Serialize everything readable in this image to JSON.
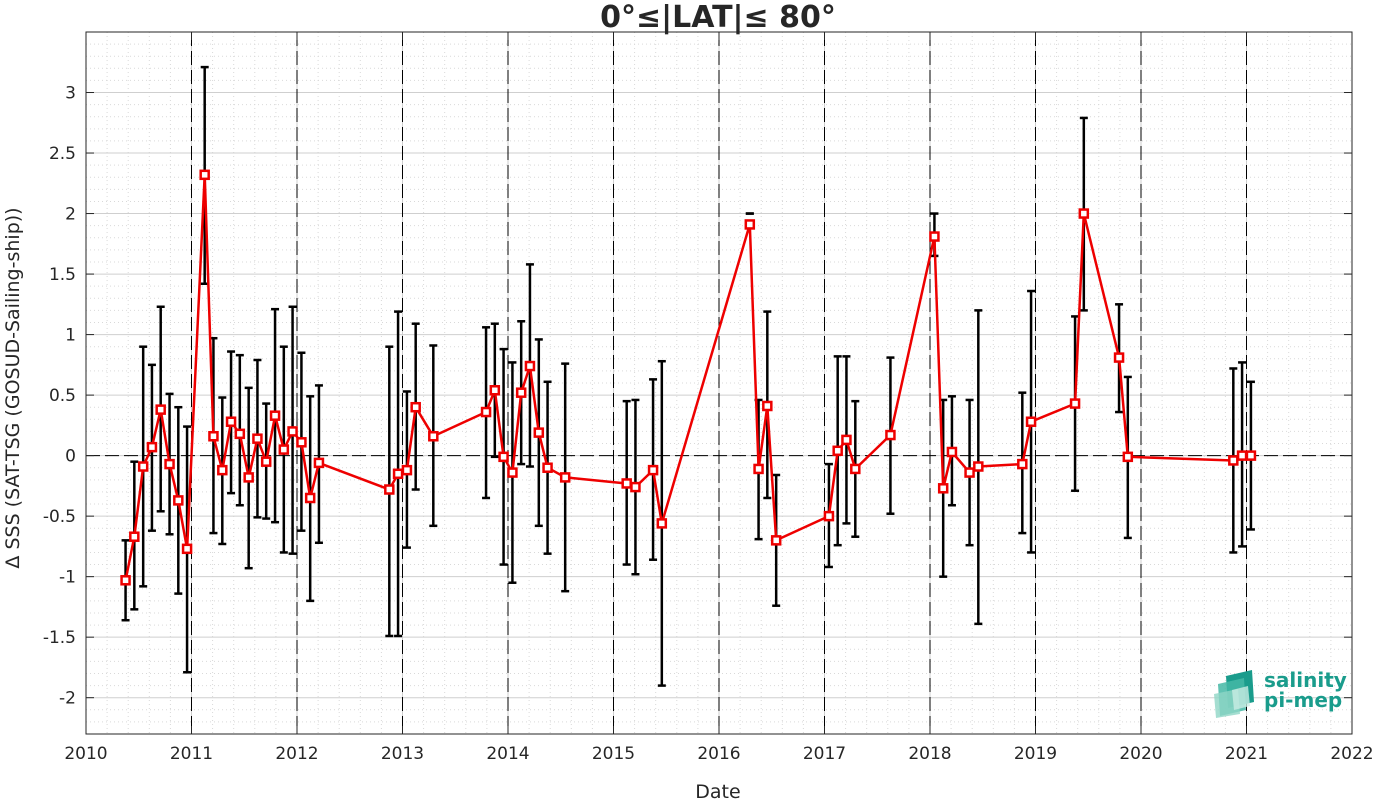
{
  "chart_data": {
    "type": "line",
    "title": "0°≤|LAT|≤ 80°",
    "xlabel": "Date",
    "ylabel": "Δ SSS (SAT-TSG (GOSUD-Sailing-ship))",
    "xlim": [
      2010,
      2022
    ],
    "ylim": [
      -2.3,
      3.5
    ],
    "x_ticks": [
      "2010",
      "2011",
      "2012",
      "2013",
      "2014",
      "2015",
      "2016",
      "2017",
      "2018",
      "2019",
      "2020",
      "2021",
      "2022"
    ],
    "y_ticks": [
      "-2",
      "-1.5",
      "-1",
      "-0.5",
      "0",
      "0.5",
      "1",
      "1.5",
      "2",
      "2.5",
      "3"
    ],
    "grid": true,
    "minor_grid": true,
    "year_divider_lines": "dashed vertical line at each January 1",
    "reference_line": {
      "y": 0,
      "style": "dashed"
    },
    "legend": "none",
    "colors": {
      "series": "#ee0000",
      "errorbar": "#000000"
    },
    "series": [
      {
        "marker": "square",
        "x": [
          2010.375,
          2010.458,
          2010.542,
          2010.625,
          2010.708,
          2010.792,
          2010.875,
          2010.958,
          2011.125,
          2011.208,
          2011.292,
          2011.375,
          2011.458,
          2011.542,
          2011.625,
          2011.708,
          2011.792,
          2011.875,
          2011.958,
          2012.042,
          2012.125,
          2012.208,
          2012.875,
          2012.958,
          2013.042,
          2013.125,
          2013.292,
          2013.792,
          2013.875,
          2013.958,
          2014.042,
          2014.125,
          2014.208,
          2014.292,
          2014.375,
          2014.542,
          2015.125,
          2015.208,
          2015.375,
          2015.458,
          2016.292,
          2016.375,
          2016.458,
          2016.542,
          2017.042,
          2017.125,
          2017.208,
          2017.292,
          2017.625,
          2018.042,
          2018.125,
          2018.208,
          2018.375,
          2018.458,
          2018.875,
          2018.958,
          2019.375,
          2019.458,
          2019.792,
          2019.875,
          2020.875,
          2020.958,
          2021.042
        ],
        "y": [
          -1.03,
          -0.67,
          -0.09,
          0.07,
          0.38,
          -0.07,
          -0.37,
          -0.77,
          2.32,
          0.16,
          -0.12,
          0.28,
          0.18,
          -0.18,
          0.14,
          -0.05,
          0.33,
          0.05,
          0.2,
          0.11,
          -0.35,
          -0.06,
          -0.28,
          -0.15,
          -0.12,
          0.4,
          0.16,
          0.36,
          0.54,
          -0.01,
          -0.14,
          0.52,
          0.74,
          0.19,
          -0.1,
          -0.18,
          -0.23,
          -0.26,
          -0.12,
          -0.56,
          1.91,
          -0.11,
          0.41,
          -0.7,
          -0.5,
          0.04,
          0.13,
          -0.11,
          0.17,
          1.81,
          -0.27,
          0.03,
          -0.14,
          -0.09,
          -0.07,
          0.28,
          0.43,
          2.0,
          0.81,
          -0.01,
          -0.04,
          0.0,
          0.0
        ],
        "y_err_low": [
          -1.36,
          -1.27,
          -1.08,
          -0.62,
          -0.46,
          -0.65,
          -1.14,
          -1.79,
          1.42,
          -0.64,
          -0.73,
          -0.31,
          -0.41,
          -0.93,
          -0.51,
          -0.52,
          -0.55,
          -0.8,
          -0.81,
          -0.62,
          -1.2,
          -0.72,
          -1.49,
          -1.49,
          -0.76,
          -0.28,
          -0.58,
          -0.35,
          -0.01,
          -0.9,
          -1.05,
          -0.07,
          -0.09,
          -0.58,
          -0.81,
          -1.12,
          -0.9,
          -0.98,
          -0.86,
          -1.9,
          2.0,
          -0.69,
          -0.35,
          -1.24,
          -0.92,
          -0.74,
          -0.56,
          -0.67,
          -0.48,
          1.65,
          -1.0,
          -0.41,
          -0.74,
          -1.39,
          -0.64,
          -0.8,
          -0.29,
          1.2,
          0.36,
          -0.68,
          -0.8,
          -0.75,
          -0.61
        ],
        "y_err_high": [
          -0.7,
          -0.05,
          0.9,
          0.75,
          1.23,
          0.51,
          0.4,
          0.24,
          3.21,
          0.97,
          0.48,
          0.86,
          0.83,
          0.56,
          0.79,
          0.43,
          1.21,
          0.9,
          1.23,
          0.85,
          0.49,
          0.58,
          0.9,
          1.19,
          0.53,
          1.09,
          0.91,
          1.06,
          1.09,
          0.88,
          0.77,
          1.11,
          1.58,
          0.96,
          0.61,
          0.76,
          0.45,
          0.46,
          0.63,
          0.78,
          2.0,
          0.46,
          1.19,
          -0.16,
          -0.07,
          0.82,
          0.82,
          0.45,
          0.81,
          2.0,
          0.46,
          0.49,
          0.46,
          1.2,
          0.52,
          1.36,
          1.15,
          2.79,
          1.25,
          0.65,
          0.72,
          0.77,
          0.61
        ]
      }
    ]
  },
  "logo": {
    "line1": "salinity",
    "line2": "pi-mep",
    "color": "#1a9c8c"
  }
}
